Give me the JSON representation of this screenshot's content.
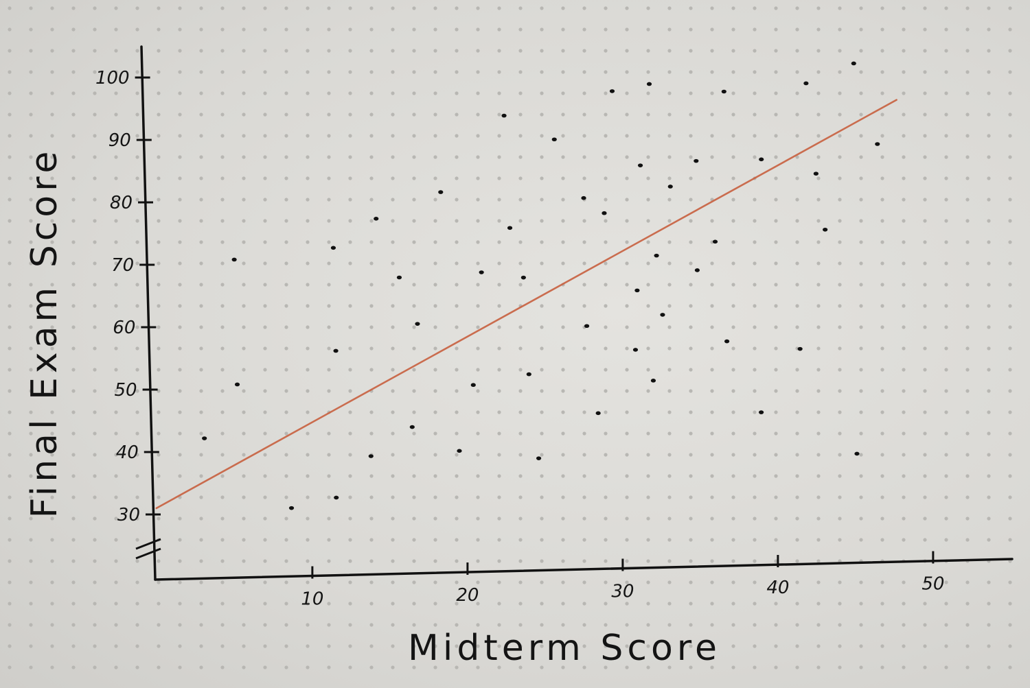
{
  "chart_data": {
    "type": "scatter",
    "xlabel": "Midterm Score",
    "ylabel": "Final Exam Score",
    "xlim": [
      0,
      55
    ],
    "ylim": [
      26,
      103
    ],
    "y_axis_break": true,
    "x_ticks": [
      10,
      20,
      30,
      40,
      50
    ],
    "y_ticks": [
      30,
      40,
      50,
      60,
      70,
      80,
      90,
      100
    ],
    "x_tick_labels": [
      "10",
      "20",
      "30",
      "40",
      "50"
    ],
    "y_tick_labels": [
      "30",
      "40",
      "50",
      "60",
      "70",
      "80",
      "90",
      "100"
    ],
    "grid": "dot-grid paper",
    "points": [
      {
        "x": 3.2,
        "y": 42
      },
      {
        "x": 5.4,
        "y": 70.5
      },
      {
        "x": 5.4,
        "y": 50.5
      },
      {
        "x": 8.7,
        "y": 30.5
      },
      {
        "x": 11.8,
        "y": 72
      },
      {
        "x": 11.8,
        "y": 55.5
      },
      {
        "x": 11.6,
        "y": 32
      },
      {
        "x": 13.9,
        "y": 38.5
      },
      {
        "x": 14.6,
        "y": 76.5
      },
      {
        "x": 16.0,
        "y": 67
      },
      {
        "x": 17.1,
        "y": 59.5
      },
      {
        "x": 16.6,
        "y": 43
      },
      {
        "x": 18.8,
        "y": 80.5
      },
      {
        "x": 19.6,
        "y": 39
      },
      {
        "x": 20.6,
        "y": 49.5
      },
      {
        "x": 21.3,
        "y": 67.5
      },
      {
        "x": 23.0,
        "y": 92.5
      },
      {
        "x": 23.2,
        "y": 74.5
      },
      {
        "x": 24.0,
        "y": 66.5
      },
      {
        "x": 24.2,
        "y": 51
      },
      {
        "x": 24.7,
        "y": 37.5
      },
      {
        "x": 26.2,
        "y": 88.5
      },
      {
        "x": 28.0,
        "y": 79
      },
      {
        "x": 28.0,
        "y": 58.5
      },
      {
        "x": 28.6,
        "y": 44.5
      },
      {
        "x": 29.3,
        "y": 76.5
      },
      {
        "x": 30.0,
        "y": 96
      },
      {
        "x": 31.1,
        "y": 54.5
      },
      {
        "x": 31.3,
        "y": 64
      },
      {
        "x": 31.7,
        "y": 84
      },
      {
        "x": 32.4,
        "y": 97
      },
      {
        "x": 32.2,
        "y": 49.5
      },
      {
        "x": 32.6,
        "y": 69.5
      },
      {
        "x": 32.9,
        "y": 60
      },
      {
        "x": 33.6,
        "y": 80.5
      },
      {
        "x": 35.2,
        "y": 67
      },
      {
        "x": 35.3,
        "y": 84.5
      },
      {
        "x": 36.4,
        "y": 71.5
      },
      {
        "x": 37.2,
        "y": 95.5
      },
      {
        "x": 37.0,
        "y": 55.5
      },
      {
        "x": 39.5,
        "y": 84.5
      },
      {
        "x": 39.1,
        "y": 44
      },
      {
        "x": 41.7,
        "y": 54
      },
      {
        "x": 42.5,
        "y": 96.5
      },
      {
        "x": 43.0,
        "y": 82
      },
      {
        "x": 43.5,
        "y": 73
      },
      {
        "x": 45.6,
        "y": 99.5
      },
      {
        "x": 45.2,
        "y": 37
      },
      {
        "x": 47.0,
        "y": 86.5
      }
    ],
    "trendline": {
      "x": [
        0,
        48.3
      ],
      "y": [
        31,
        93.5
      ],
      "color": "#c8603f"
    }
  }
}
